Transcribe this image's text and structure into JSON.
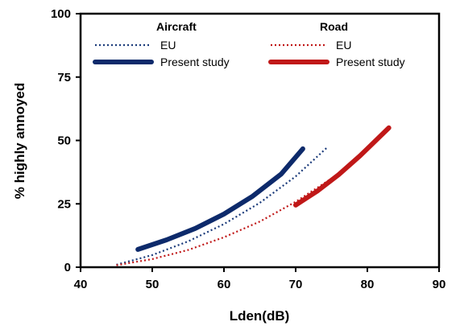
{
  "chart_data": {
    "type": "line",
    "xlabel": "Lden(dB)",
    "ylabel": "% highly annoyed",
    "xlim": [
      40,
      90
    ],
    "ylim": [
      0,
      100
    ],
    "xticks": [
      40,
      50,
      60,
      70,
      80,
      90
    ],
    "yticks": [
      0,
      25,
      50,
      75,
      100
    ],
    "grid": false,
    "legend_position": "top",
    "legend_groups": [
      "Aircraft",
      "Road"
    ],
    "series": [
      {
        "group": "Aircraft",
        "name": "EU",
        "style": "dotted",
        "color": "#1a3a7a",
        "x": [
          45,
          50,
          55,
          60,
          65,
          70,
          74.5
        ],
        "y": [
          1.0,
          4.8,
          10.2,
          17.0,
          25.4,
          35.8,
          47.5
        ]
      },
      {
        "group": "Aircraft",
        "name": "Present study",
        "style": "solid",
        "color": "#0d2a6b",
        "x": [
          48,
          52,
          56,
          60,
          64,
          68,
          71
        ],
        "y": [
          7.0,
          10.8,
          15.3,
          21.0,
          28.0,
          36.8,
          46.7
        ]
      },
      {
        "group": "Road",
        "name": "EU",
        "style": "dotted",
        "color": "#c01818",
        "x": [
          45,
          50,
          55,
          60,
          65,
          70,
          75
        ],
        "y": [
          0.8,
          3.2,
          6.8,
          11.8,
          18.0,
          25.8,
          35.0
        ]
      },
      {
        "group": "Road",
        "name": "Present study",
        "style": "solid",
        "color": "#c01818",
        "x": [
          70,
          73,
          76,
          79,
          81,
          83
        ],
        "y": [
          24.5,
          30.0,
          36.5,
          44.0,
          49.5,
          55.0
        ]
      }
    ]
  }
}
